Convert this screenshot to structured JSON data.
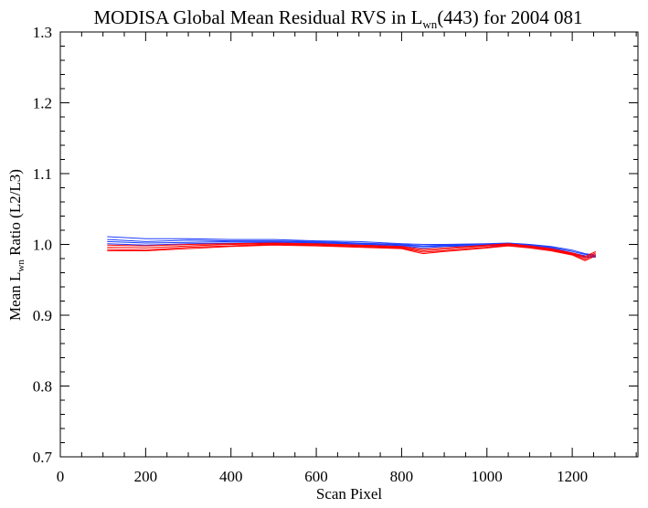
{
  "chart_data": {
    "type": "line",
    "title": {
      "main": "MODISA Global Mean Residual RVS in L",
      "sub": "wn",
      "rest": "(443) for 2004 081"
    },
    "xlabel": "Scan Pixel",
    "ylabel": {
      "prefix": "Mean L",
      "sub": "wn",
      "suffix": " Ratio (L2/L3)"
    },
    "xlim": [
      0,
      1354
    ],
    "ylim": [
      0.7,
      1.3
    ],
    "x_ticks": [
      0,
      200,
      400,
      600,
      800,
      1000,
      1200
    ],
    "x_tick_labels": [
      "0",
      "200",
      "400",
      "600",
      "800",
      "1000",
      "1200"
    ],
    "y_ticks": [
      0.7,
      0.8,
      0.9,
      1.0,
      1.1,
      1.2,
      1.3
    ],
    "y_tick_labels": [
      "0.7",
      "0.8",
      "0.9",
      "1.0",
      "1.1",
      "1.2",
      "1.3"
    ],
    "grid": false,
    "colors": {
      "blue": "#1f3fff",
      "red": "#ff0000"
    },
    "series": [
      {
        "color": "blue",
        "x": [
          110,
          200,
          300,
          400,
          500,
          600,
          700,
          800,
          850,
          900,
          1000,
          1050,
          1100,
          1150,
          1200,
          1230,
          1255
        ],
        "y": [
          1.011,
          1.008,
          1.008,
          1.007,
          1.007,
          1.005,
          1.004,
          1.001,
          1.0,
          1.0,
          1.001,
          1.002,
          1.0,
          0.997,
          0.992,
          0.987,
          0.985
        ]
      },
      {
        "color": "blue",
        "x": [
          110,
          200,
          300,
          400,
          500,
          600,
          700,
          800,
          850,
          900,
          1000,
          1050,
          1100,
          1150,
          1200,
          1230,
          1255
        ],
        "y": [
          1.007,
          1.004,
          1.006,
          1.005,
          1.005,
          1.004,
          1.002,
          1.0,
          0.998,
          0.999,
          1.0,
          1.001,
          0.999,
          0.996,
          0.99,
          0.986,
          0.984
        ]
      },
      {
        "color": "blue",
        "x": [
          110,
          200,
          300,
          400,
          500,
          600,
          700,
          800,
          850,
          900,
          1000,
          1050,
          1100,
          1150,
          1200,
          1230,
          1255
        ],
        "y": [
          1.004,
          1.002,
          1.003,
          1.004,
          1.004,
          1.003,
          1.001,
          0.999,
          0.997,
          0.998,
          0.999,
          1.0,
          0.998,
          0.995,
          0.988,
          0.984,
          0.983
        ]
      },
      {
        "color": "blue",
        "x": [
          110,
          200,
          300,
          400,
          500,
          600,
          700,
          800,
          850,
          900,
          1000,
          1050,
          1100,
          1150,
          1200,
          1230,
          1255
        ],
        "y": [
          1.001,
          0.999,
          1.001,
          1.002,
          1.003,
          1.002,
          1.0,
          0.998,
          0.995,
          0.997,
          0.998,
          0.999,
          0.997,
          0.994,
          0.987,
          0.982,
          0.982
        ]
      },
      {
        "color": "red",
        "x": [
          110,
          200,
          300,
          400,
          500,
          600,
          700,
          800,
          850,
          900,
          1000,
          1050,
          1100,
          1150,
          1200,
          1230,
          1255
        ],
        "y": [
          0.999,
          0.998,
          1.0,
          1.001,
          1.002,
          1.001,
          0.999,
          0.997,
          0.993,
          0.995,
          0.999,
          1.001,
          0.998,
          0.994,
          0.988,
          0.983,
          0.99
        ]
      },
      {
        "color": "red",
        "x": [
          110,
          200,
          300,
          400,
          500,
          600,
          700,
          800,
          850,
          900,
          1000,
          1050,
          1100,
          1150,
          1200,
          1230,
          1255
        ],
        "y": [
          0.996,
          0.995,
          0.998,
          1.0,
          1.001,
          1.0,
          0.998,
          0.996,
          0.991,
          0.993,
          0.998,
          1.0,
          0.997,
          0.993,
          0.987,
          0.981,
          0.988
        ]
      },
      {
        "color": "red",
        "x": [
          110,
          200,
          300,
          400,
          500,
          600,
          700,
          800,
          850,
          900,
          1000,
          1050,
          1100,
          1150,
          1200,
          1230,
          1255
        ],
        "y": [
          0.993,
          0.992,
          0.996,
          0.998,
          1.0,
          0.999,
          0.997,
          0.995,
          0.989,
          0.991,
          0.996,
          0.999,
          0.996,
          0.992,
          0.986,
          0.979,
          0.986
        ]
      },
      {
        "color": "red",
        "x": [
          110,
          200,
          300,
          400,
          500,
          600,
          700,
          800,
          850,
          900,
          1000,
          1050,
          1100,
          1150,
          1200,
          1230,
          1255
        ],
        "y": [
          0.991,
          0.991,
          0.994,
          0.997,
          0.999,
          0.998,
          0.996,
          0.994,
          0.987,
          0.99,
          0.995,
          0.998,
          0.995,
          0.991,
          0.985,
          0.977,
          0.984
        ]
      }
    ]
  }
}
